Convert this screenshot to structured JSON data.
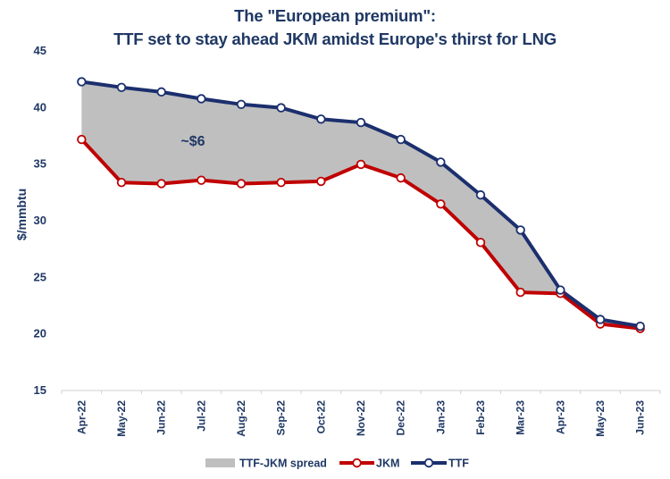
{
  "chart_data": {
    "type": "line",
    "title_line1": "The \"European premium\":",
    "title_line2": "TTF set to stay ahead JKM amidst Europe's thirst for LNG",
    "xlabel": "",
    "ylabel": "$/mmbtu",
    "ylim": [
      15,
      45
    ],
    "yticks": [
      15,
      20,
      25,
      30,
      35,
      40,
      45
    ],
    "grid": false,
    "legend_position": "bottom",
    "categories": [
      "Apr-22",
      "May-22",
      "Jun-22",
      "Jul-22",
      "Aug-22",
      "Sep-22",
      "Oct-22",
      "Nov-22",
      "Dec-22",
      "Jan-23",
      "Feb-23",
      "Mar-23",
      "Apr-23",
      "May-23",
      "Jun-23"
    ],
    "series": [
      {
        "name": "JKM",
        "color": "#c00000",
        "values": [
          37.1,
          33.3,
          33.2,
          33.5,
          33.2,
          33.3,
          33.4,
          34.9,
          33.7,
          31.4,
          28.0,
          23.6,
          23.5,
          20.8,
          20.4
        ]
      },
      {
        "name": "TTF",
        "color": "#1b2f6e",
        "values": [
          42.2,
          41.7,
          41.3,
          40.7,
          40.2,
          39.9,
          38.9,
          38.6,
          37.1,
          35.1,
          32.2,
          29.1,
          23.8,
          21.2,
          20.6
        ]
      }
    ],
    "spread": {
      "name": "TTF-JKM spread",
      "color": "#bfbfbf"
    },
    "annotations": [
      {
        "text": "~$6",
        "x": "Jun-22",
        "y": 38.5
      }
    ],
    "legend": [
      "TTF-JKM spread",
      "JKM",
      "TTF"
    ]
  }
}
